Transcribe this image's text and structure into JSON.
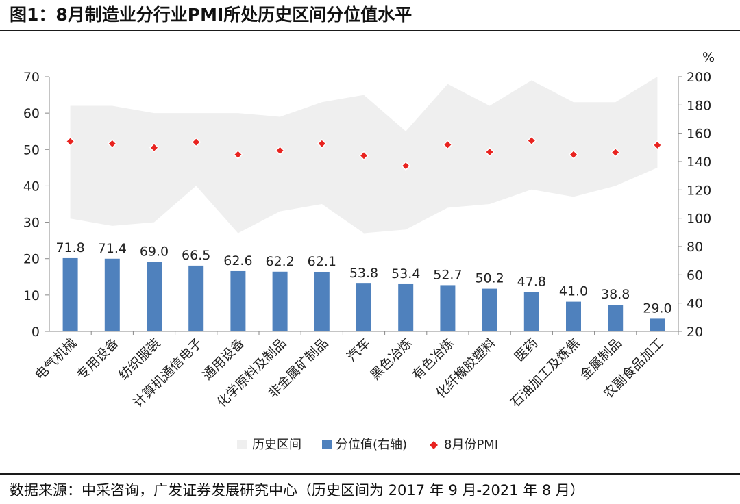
{
  "title": "图1：8月制造业分行业PMI所处历史区间分位值水平",
  "source": "数据来源：中采咨询，广发证券发展研究中心（历史区间为 2017 年 9 月-2021 年 8 月）",
  "colors": {
    "range": "#efefef",
    "bar": "#4f81bd",
    "pmi": "#e8231f",
    "pmi_stroke": "#ffffff"
  },
  "chart_data": {
    "type": "bar",
    "categories": [
      "电气机械",
      "专用设备",
      "纺织服装",
      "计算机通信电子",
      "通用设备",
      "化学原料及制品",
      "非金属矿制品",
      "汽车",
      "黑色冶炼",
      "有色冶炼",
      "化纤橡胶塑料",
      "医药",
      "石油加工及炼焦",
      "金属制品",
      "农副食品加工"
    ],
    "series": [
      {
        "name": "历史区间",
        "axis": "left",
        "type": "area-range",
        "low": [
          31,
          29,
          30,
          40,
          27,
          33,
          35,
          27,
          28,
          34,
          35,
          39,
          37,
          40,
          45
        ],
        "high": [
          62,
          62,
          60,
          60,
          60,
          59,
          63,
          65,
          55,
          68,
          62,
          69,
          63,
          63,
          70
        ]
      },
      {
        "name": "分位值(右轴)",
        "axis": "right",
        "type": "bar",
        "values": [
          71.8,
          71.4,
          69.0,
          66.5,
          62.6,
          62.2,
          62.1,
          53.8,
          53.4,
          52.7,
          50.2,
          47.8,
          41.0,
          38.8,
          29.0
        ],
        "labels": [
          "71.8",
          "71.4",
          "69.0",
          "66.5",
          "62.6",
          "62.2",
          "62.1",
          "53.8",
          "53.4",
          "52.7",
          "50.2",
          "47.8",
          "41.0",
          "38.8",
          "29.0"
        ]
      },
      {
        "name": "8月份PMI",
        "axis": "left",
        "type": "scatter",
        "values": [
          52.2,
          51.6,
          50.5,
          52.0,
          48.6,
          49.7,
          51.6,
          48.3,
          45.5,
          51.3,
          49.3,
          52.4,
          48.6,
          49.2,
          51.2
        ]
      }
    ],
    "y_left": {
      "min": 0,
      "max": 70,
      "ticks": [
        0,
        10,
        20,
        30,
        40,
        50,
        60,
        70
      ]
    },
    "y_right": {
      "min": 20,
      "max": 200,
      "ticks": [
        20,
        40,
        60,
        80,
        100,
        120,
        140,
        160,
        180,
        200
      ],
      "unit": "%"
    },
    "legend": {
      "position": "bottom",
      "items": [
        "历史区间",
        "分位值(右轴)",
        "8月份PMI"
      ]
    }
  }
}
